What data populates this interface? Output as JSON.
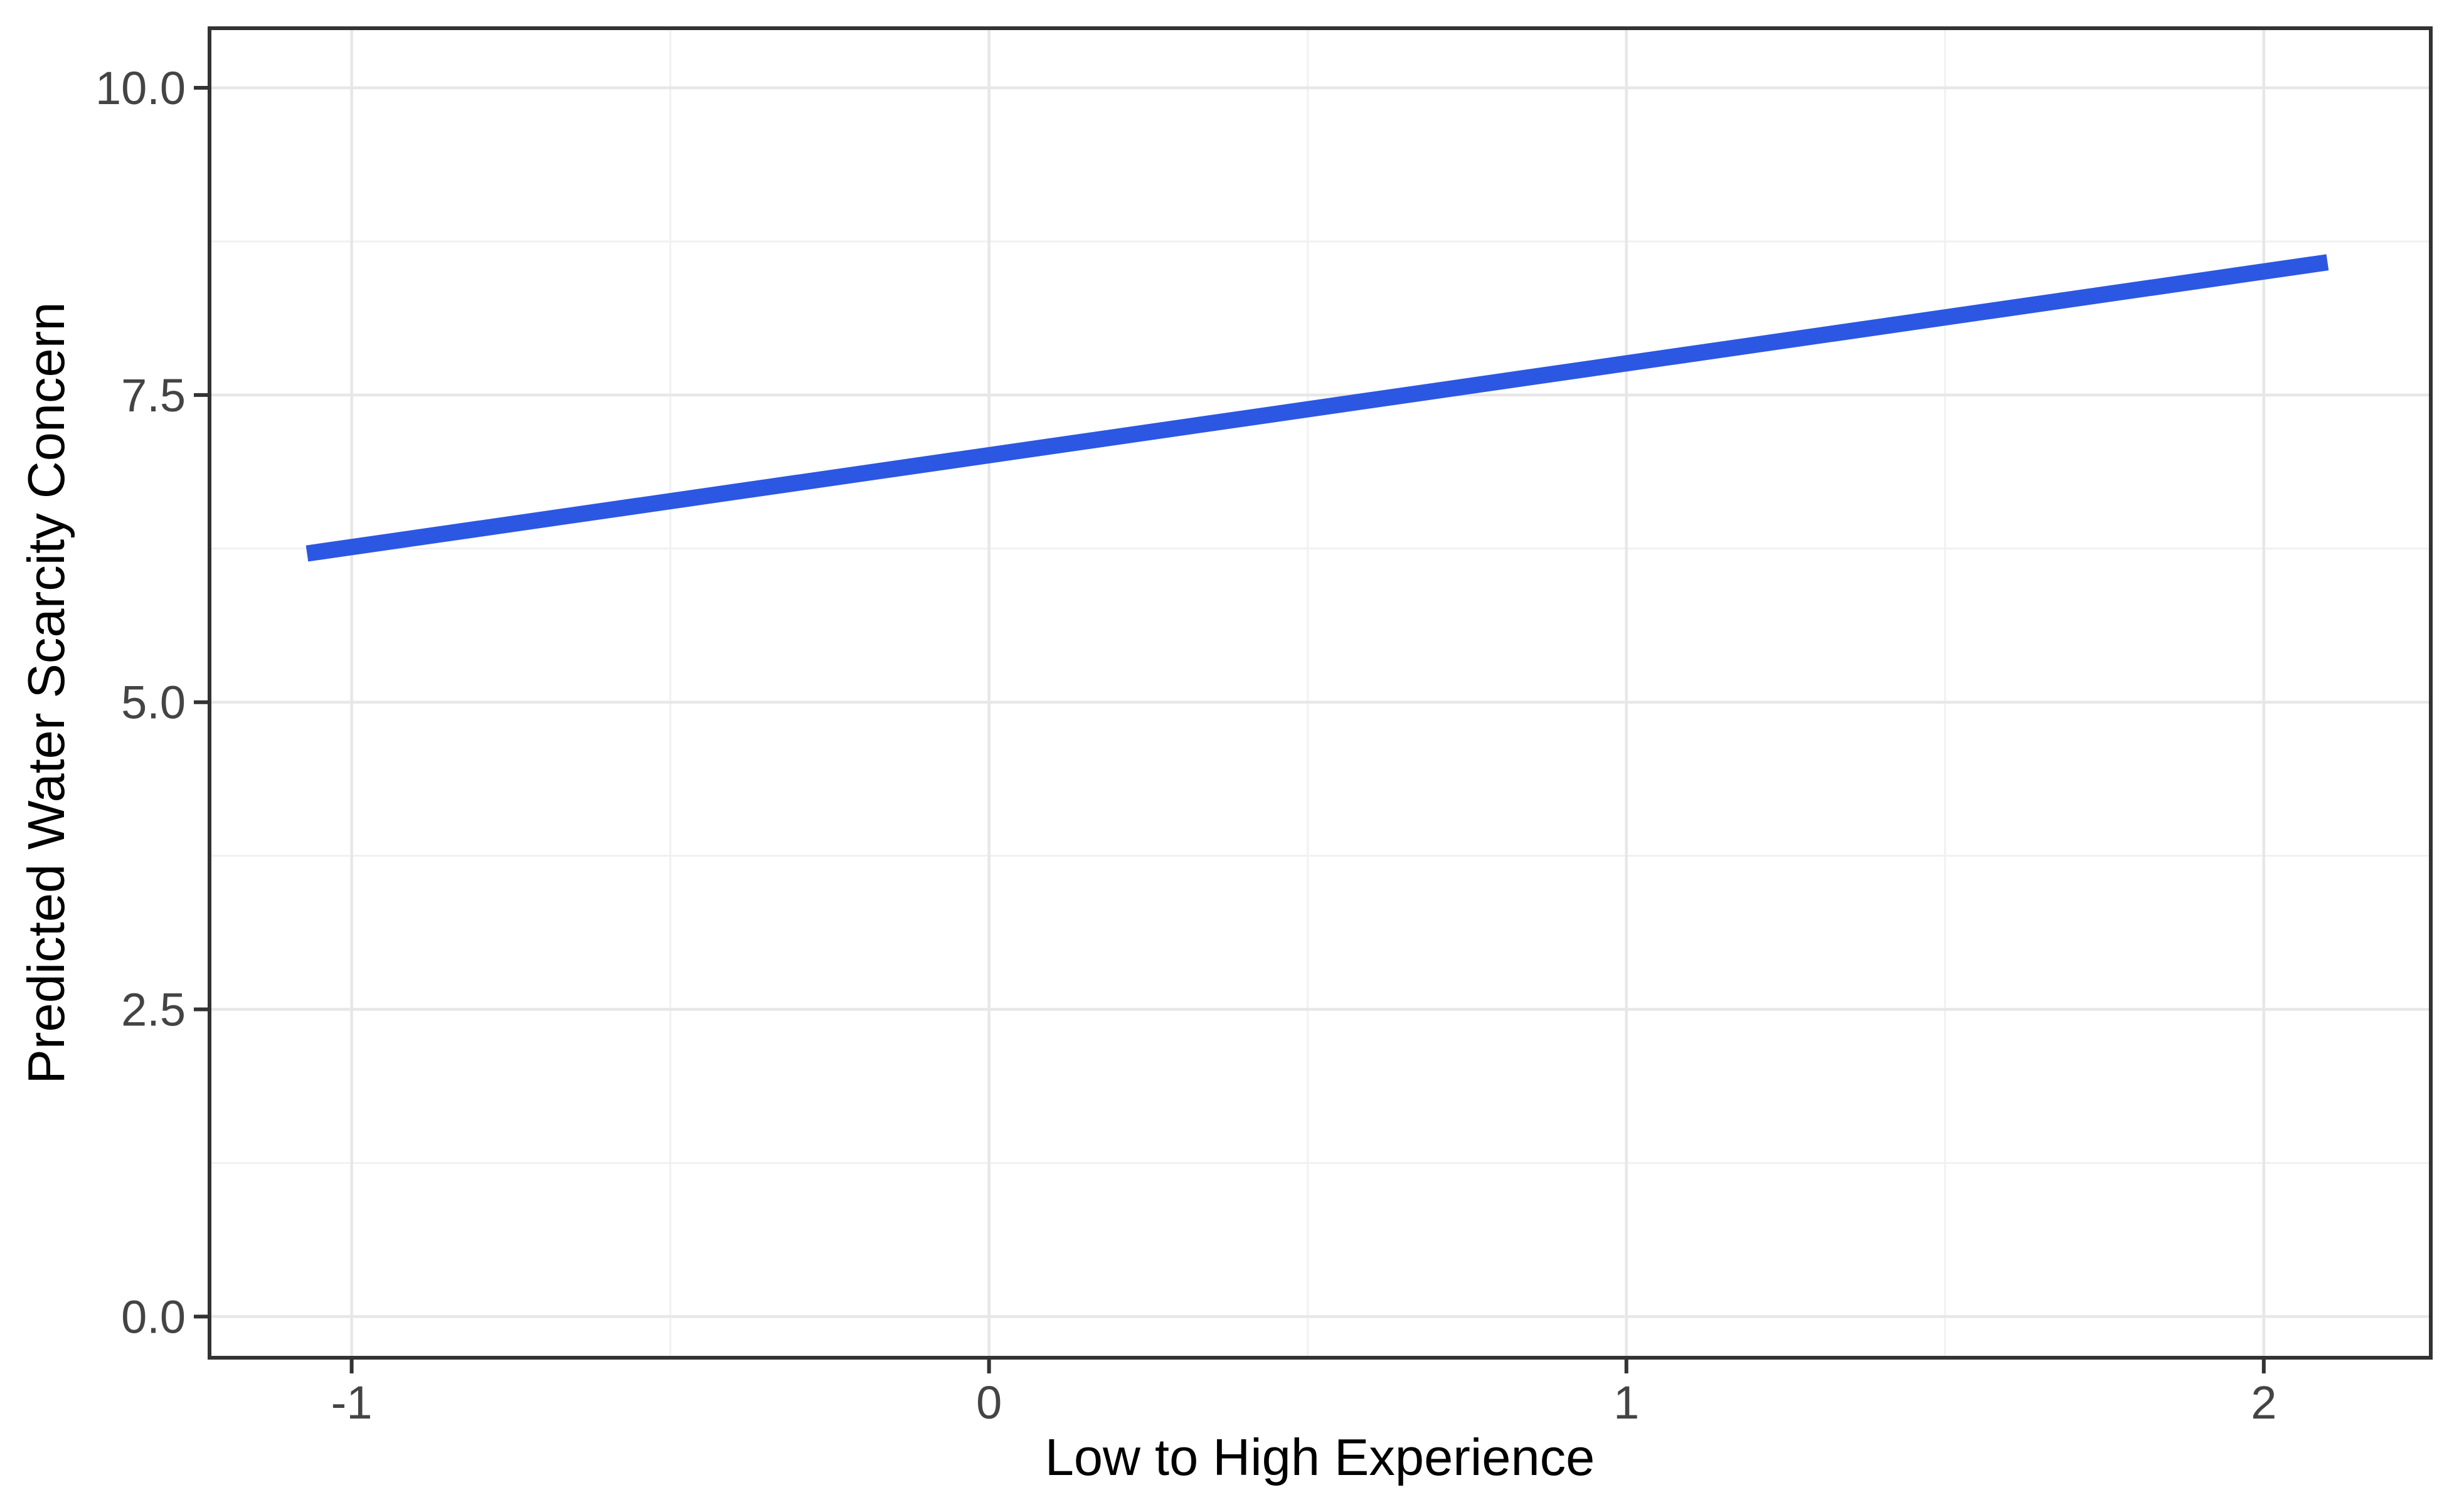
{
  "figure": {
    "background": "#FFFFFF"
  },
  "chart_data": {
    "type": "line",
    "title": "",
    "xlabel": "Low to High Experience",
    "ylabel": "Predicted Water Scarcity Concern",
    "x_ticks": [
      "-1",
      "0",
      "1",
      "2"
    ],
    "x_tick_values": [
      -1,
      0,
      1,
      2
    ],
    "y_ticks": [
      "0.0",
      "2.5",
      "5.0",
      "7.5",
      "10.0"
    ],
    "y_tick_values": [
      0,
      2.5,
      5,
      7.5,
      10
    ],
    "xlim": [
      -1.223,
      2.262
    ],
    "ylim": [
      -0.335,
      10.485
    ],
    "grid": {
      "major": true,
      "minor": true
    },
    "legend": "none",
    "series": [
      {
        "name": "predicted-line",
        "type": "line",
        "color": "#2C57E3",
        "stroke_px": 26,
        "points": [
          {
            "x": -1.07,
            "y": 6.21
          },
          {
            "x": 2.1,
            "y": 8.58
          }
        ]
      }
    ]
  },
  "style": {
    "panel_background": "#FFFFFF",
    "panel_border": "#333333",
    "grid_major": "#E7E7E7",
    "grid_minor": "#F1F1F1",
    "tick_mark": "#333333",
    "tick_label": "#444444",
    "axis_title": "#000000"
  }
}
